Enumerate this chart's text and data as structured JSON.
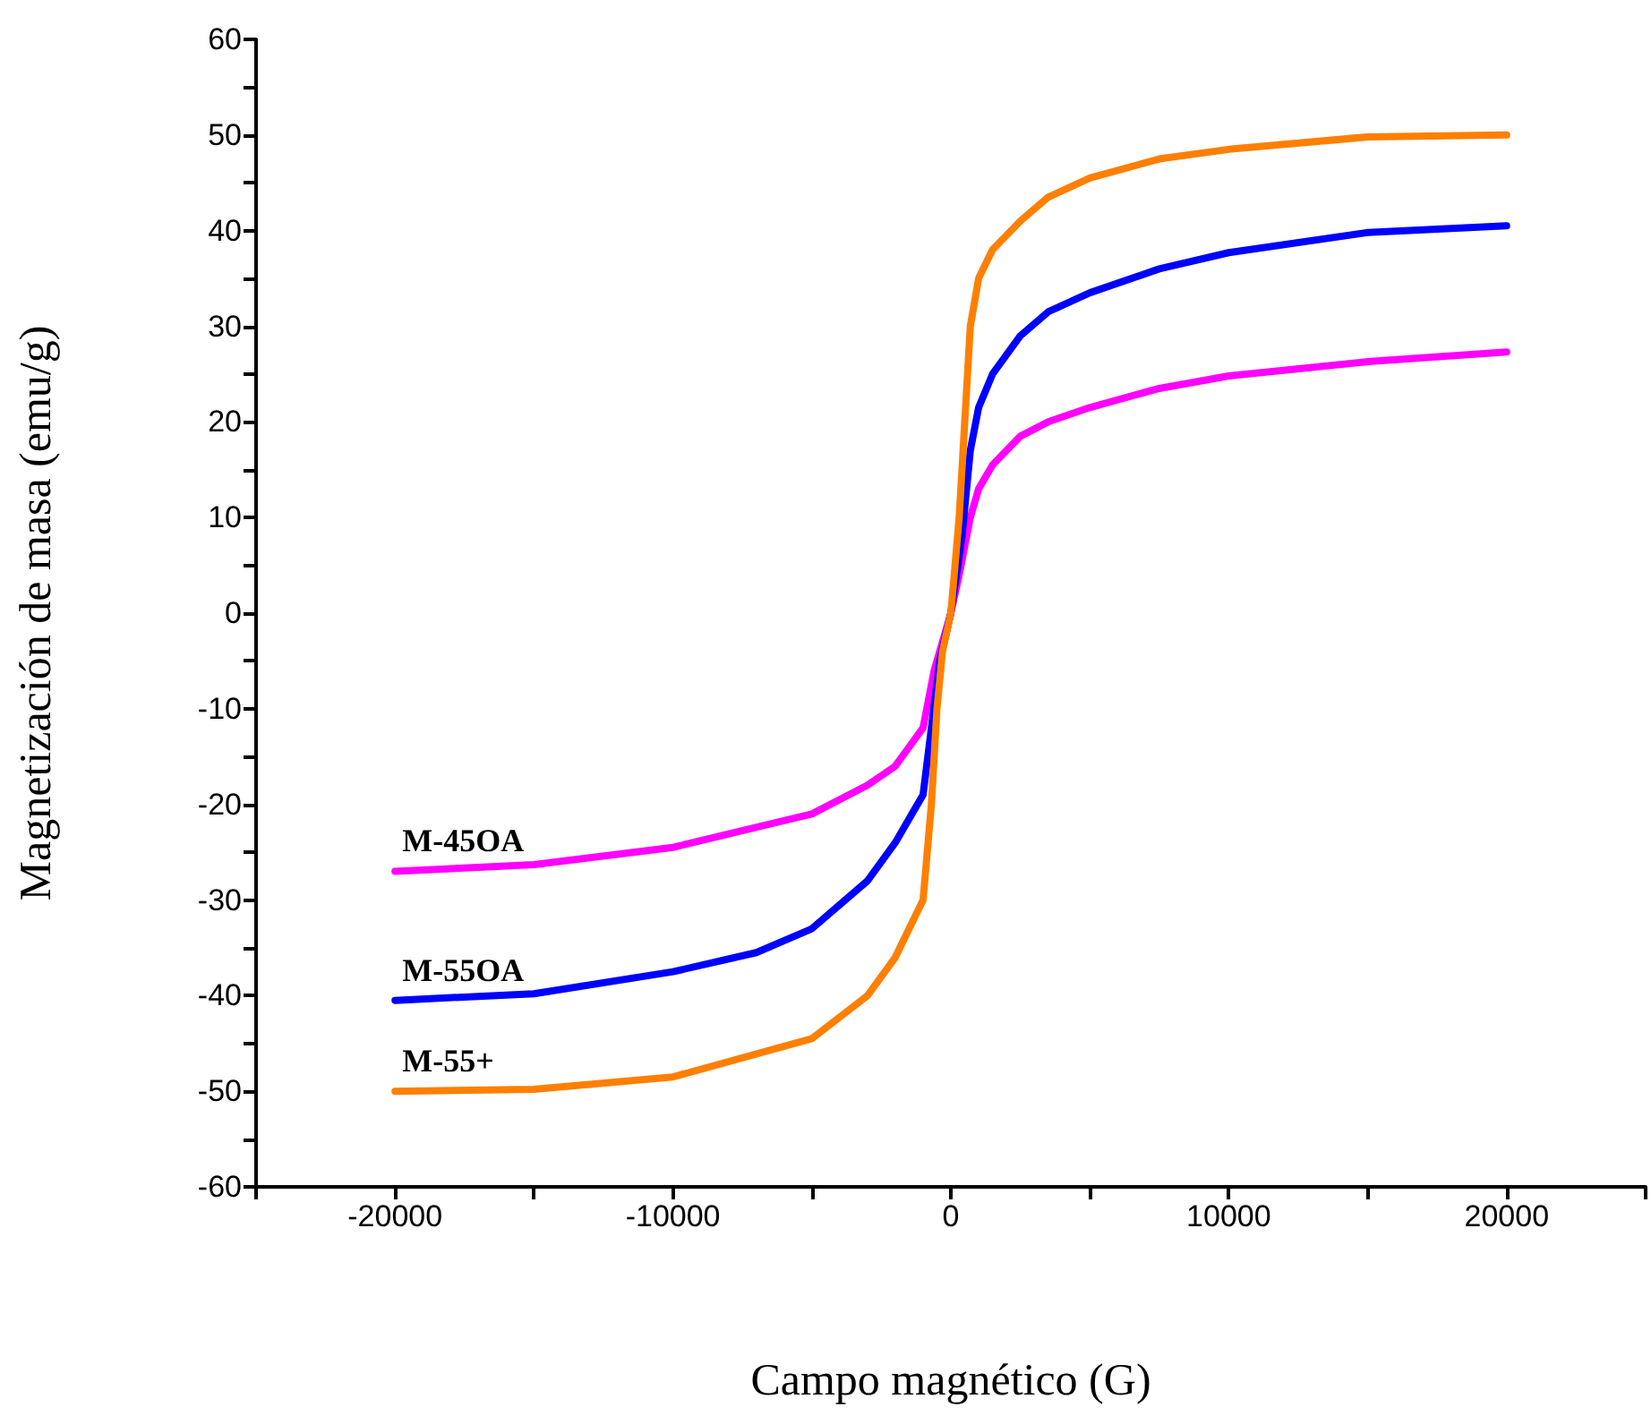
{
  "chart_data": {
    "type": "line",
    "xlabel": "Campo magnético (G)",
    "ylabel": "Magnetización de masa (emu/g)",
    "xlim": [
      -25000,
      25000
    ],
    "xticks": [
      {
        "value": -25000,
        "label": null
      },
      -20000,
      {
        "value": -15000,
        "label": null
      },
      -10000,
      {
        "value": -5000,
        "label": null
      },
      0,
      {
        "value": 5000,
        "label": null
      },
      10000,
      {
        "value": 15000,
        "label": null
      },
      20000,
      {
        "value": 25000,
        "label": null
      }
    ],
    "ylim": [
      -60,
      60
    ],
    "yticks": [
      -60,
      {
        "value": -55,
        "label": null
      },
      -50,
      {
        "value": -45,
        "label": null
      },
      -40,
      {
        "value": -35,
        "label": null
      },
      -30,
      {
        "value": -25,
        "label": null
      },
      -20,
      {
        "value": -15,
        "label": null
      },
      -10,
      {
        "value": -5,
        "label": null
      },
      0,
      {
        "value": 5,
        "label": null
      },
      10,
      {
        "value": 15,
        "label": null
      },
      20,
      {
        "value": 25,
        "label": null
      },
      30,
      {
        "value": 35,
        "label": null
      },
      40,
      {
        "value": 45,
        "label": null
      },
      50,
      {
        "value": 55,
        "label": null
      },
      60
    ],
    "grid": false,
    "legend": false,
    "series": [
      {
        "name": "M-45OA",
        "color": "#ff00ff",
        "x": [
          -20000,
          -15000,
          -10000,
          -5000,
          -3000,
          -2000,
          -1000,
          -600,
          -300,
          0,
          300,
          700,
          1000,
          1500,
          2500,
          3500,
          5000,
          7500,
          10000,
          15000,
          20000
        ],
        "values": [
          -27,
          -26.3,
          -24.5,
          -21,
          -18,
          -16,
          -12,
          -6,
          -3,
          0,
          4,
          10,
          13,
          15.5,
          18.5,
          20,
          21.5,
          23.5,
          24.8,
          26.3,
          27.3
        ]
      },
      {
        "name": "M-55OA",
        "color": "#0000ff",
        "x": [
          -20000,
          -15000,
          -10000,
          -7000,
          -5000,
          -3000,
          -2000,
          -1000,
          -700,
          -400,
          0,
          400,
          700,
          1000,
          1500,
          2500,
          3500,
          5000,
          7500,
          10000,
          15000,
          20000
        ],
        "values": [
          -40.5,
          -39.8,
          -37.5,
          -35.5,
          -33,
          -28,
          -24,
          -19,
          -12,
          -5,
          0,
          8,
          17,
          21.5,
          25,
          29,
          31.5,
          33.5,
          36,
          37.7,
          39.8,
          40.5
        ]
      },
      {
        "name": "M-55+",
        "color": "#ff7f00",
        "x": [
          -20000,
          -15000,
          -10000,
          -5000,
          -3000,
          -2000,
          -1000,
          -700,
          -500,
          -300,
          0,
          300,
          500,
          700,
          1000,
          1500,
          2500,
          3500,
          5000,
          7500,
          10000,
          15000,
          20000
        ],
        "values": [
          -50,
          -49.8,
          -48.5,
          -44.5,
          -40,
          -36,
          -30,
          -20,
          -10,
          -4,
          0,
          10,
          20,
          30,
          35,
          38,
          41,
          43.5,
          45.5,
          47.5,
          48.5,
          49.8,
          50
        ]
      }
    ]
  }
}
